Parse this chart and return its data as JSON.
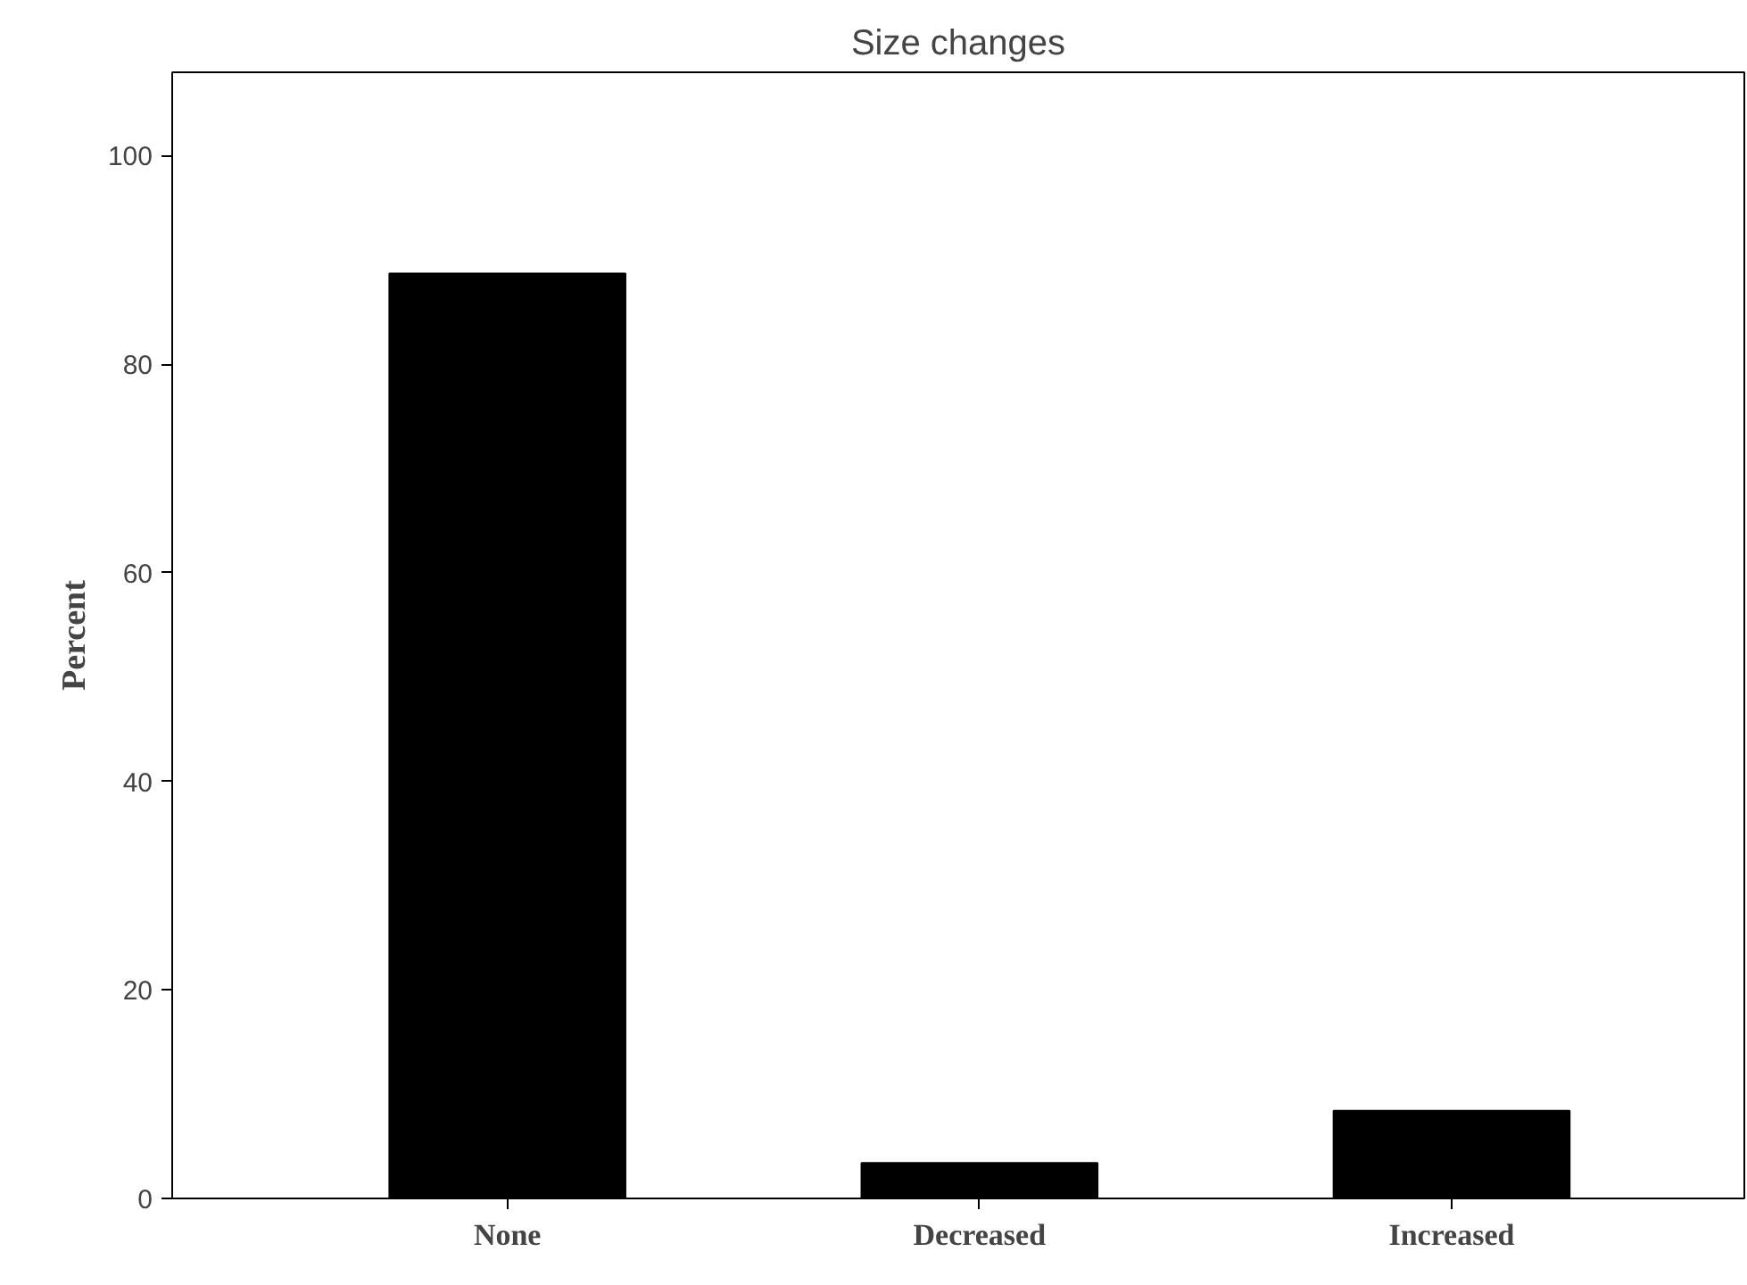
{
  "chart_data": {
    "type": "bar",
    "title": "Size changes",
    "ylabel": "Percent",
    "categories": [
      "None",
      "Decreased",
      "Increased"
    ],
    "values": [
      88.7,
      3.4,
      8.4
    ],
    "color": "#000000",
    "ylim": [
      0,
      108
    ],
    "yticks": [
      0,
      20,
      40,
      60,
      80,
      100
    ],
    "grid": false
  }
}
